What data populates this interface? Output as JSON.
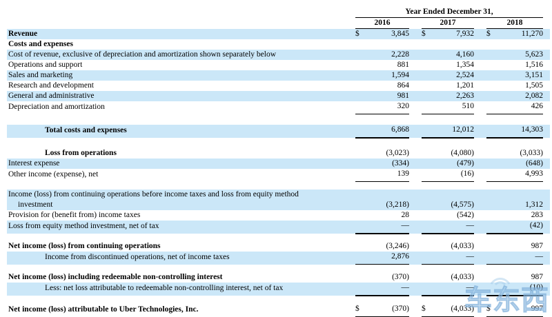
{
  "header": {
    "title": "Year Ended December 31,",
    "years": [
      "2016",
      "2017",
      "2018"
    ]
  },
  "colors": {
    "row_highlight": "#cbe7f8",
    "rule": "#000000",
    "watermark": "#9ec8e8"
  },
  "watermark": {
    "text": "车东西"
  },
  "rows": [
    {
      "label": "Revenue",
      "bold": true,
      "bg": "blue",
      "dollar": true,
      "values": [
        "3,845",
        "7,932",
        "11,270"
      ]
    },
    {
      "label": "Costs and expenses",
      "bold": true,
      "bg": "white",
      "values": null
    },
    {
      "label": "Cost of revenue, exclusive of depreciation and amortization shown separately below",
      "bg": "blue",
      "values": [
        "2,228",
        "4,160",
        "5,623"
      ]
    },
    {
      "label": "Operations and support",
      "bg": "white",
      "values": [
        "881",
        "1,354",
        "1,516"
      ]
    },
    {
      "label": "Sales and marketing",
      "bg": "blue",
      "values": [
        "1,594",
        "2,524",
        "3,151"
      ]
    },
    {
      "label": "Research and development",
      "bg": "white",
      "values": [
        "864",
        "1,201",
        "1,505"
      ]
    },
    {
      "label": "General and administrative",
      "bg": "blue",
      "values": [
        "981",
        "2,263",
        "2,082"
      ]
    },
    {
      "label": "Depreciation and amortization",
      "bg": "white",
      "values": [
        "320",
        "510",
        "426"
      ],
      "underline": "thin"
    },
    {
      "spacer": true,
      "h": 15
    },
    {
      "label": "Total costs and expenses",
      "bold": true,
      "indent": true,
      "bg": "blue",
      "values": [
        "6,868",
        "12,012",
        "14,303"
      ],
      "underline": "thick"
    },
    {
      "spacer": true,
      "h": 14
    },
    {
      "label": "Loss from operations",
      "bold": true,
      "indent": true,
      "bg": "white",
      "values": [
        "(3,023)",
        "(4,080)",
        "(3,033)"
      ]
    },
    {
      "label": "Interest expense",
      "bg": "blue",
      "values": [
        "(334)",
        "(479)",
        "(648)"
      ]
    },
    {
      "label": "Other income (expense), net",
      "bg": "white",
      "values": [
        "139",
        "(16)",
        "4,993"
      ],
      "underline": "thin"
    },
    {
      "spacer": true,
      "h": 11
    },
    {
      "label": "Income (loss) from continuing operations before income taxes and loss from equity method",
      "label2": "investment",
      "bg": "blue",
      "values": [
        "(3,218)",
        "(4,575)",
        "1,312"
      ]
    },
    {
      "label": "Provision for (benefit from) income taxes",
      "bg": "white",
      "values": [
        "28",
        "(542)",
        "283"
      ]
    },
    {
      "label": "Loss from equity method investment, net of tax",
      "bg": "blue",
      "values": [
        "—",
        "—",
        "(42)"
      ],
      "underline": "thick"
    },
    {
      "spacer": true,
      "h": 10
    },
    {
      "label": "Net income (loss) from continuing operations",
      "bold": true,
      "bg": "white",
      "values": [
        "(3,246)",
        "(4,033)",
        "987"
      ]
    },
    {
      "label": "Income from discontinued operations, net of income taxes",
      "indent": true,
      "bg": "blue",
      "values": [
        "2,876",
        "—",
        "—"
      ],
      "underline": "thin"
    },
    {
      "spacer": true,
      "h": 11
    },
    {
      "label": "Net income (loss) including redeemable non-controlling interest",
      "bold": true,
      "bg": "white",
      "values": [
        "(370)",
        "(4,033)",
        "987"
      ]
    },
    {
      "label": "Less: net loss attributable to redeemable non-controlling interest, net of tax",
      "indent": true,
      "bg": "blue",
      "values": [
        "—",
        "—",
        "(10)"
      ],
      "underline": "thick"
    },
    {
      "spacer": true,
      "h": 11
    },
    {
      "label": "Net income (loss) attributable to Uber Technologies, Inc.",
      "bold": true,
      "bg": "white",
      "dollar": true,
      "values": [
        "(370)",
        "(4,033)",
        "997"
      ],
      "underline": "thin"
    }
  ]
}
